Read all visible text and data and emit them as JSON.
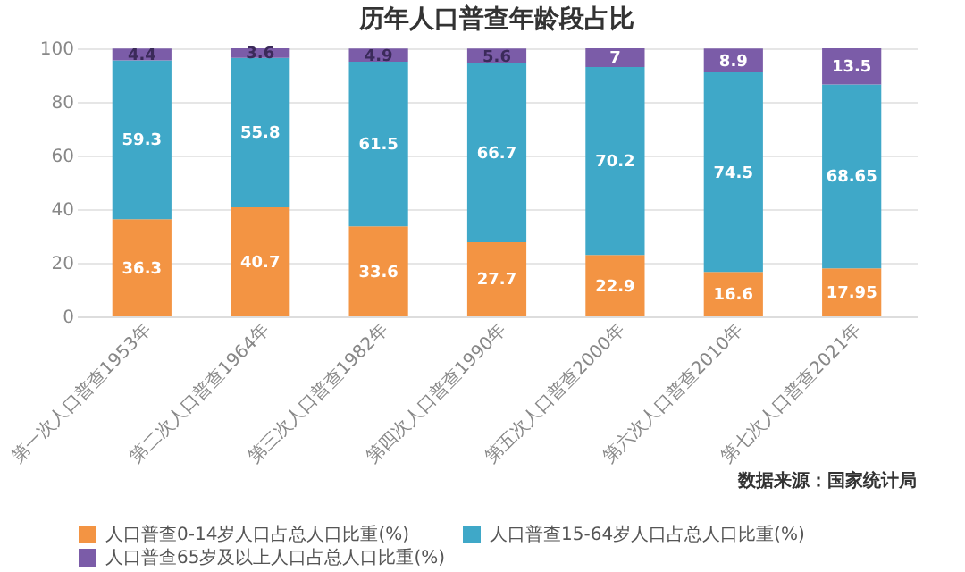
{
  "chart_data": {
    "type": "bar",
    "title": "历年人口普查年龄段占比",
    "categories": [
      "第一次人口普查1953年",
      "第二次人口普查1964年",
      "第三次人口普查1982年",
      "第四次人口普查1990年",
      "第五次人口普查2000年",
      "第六次人口普查2010年",
      "第七次人口普查2021年"
    ],
    "series": [
      {
        "name": "人口普查0-14岁人口占总人口比重(%)",
        "color": "#f39443",
        "values": [
          36.3,
          40.7,
          33.6,
          27.7,
          22.9,
          16.6,
          17.95
        ]
      },
      {
        "name": "人口普查15-64岁人口占总人口比重(%)",
        "color": "#3fa8c8",
        "values": [
          59.3,
          55.8,
          61.5,
          66.7,
          70.2,
          74.5,
          68.65
        ]
      },
      {
        "name": "人口普查65岁及以上人口占总人口比重(%)",
        "color": "#7b5ca8",
        "values": [
          4.4,
          3.6,
          4.9,
          5.6,
          7,
          8.9,
          13.5
        ]
      }
    ],
    "stacked": true,
    "data_labels": true,
    "ylim": [
      0,
      100.1
    ],
    "yticks": [
      0,
      20,
      40,
      60,
      80,
      100
    ],
    "grid": "y",
    "legend": "bottom",
    "annotations": [
      "数据来源：国家统计局"
    ]
  }
}
